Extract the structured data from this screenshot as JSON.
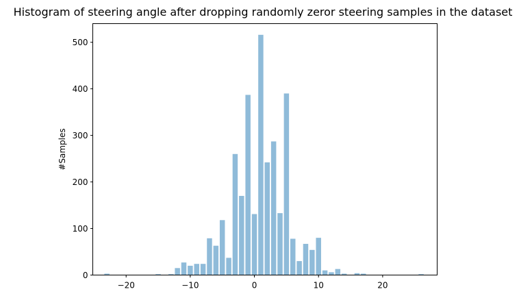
{
  "chart_data": {
    "type": "bar",
    "title": "Histogram of steering angle after dropping randomly zeror steering samples in the dataset",
    "xlabel": "",
    "ylabel": "#Samples",
    "xlim": [
      -25.2,
      28.5
    ],
    "ylim": [
      0,
      540
    ],
    "xticks": [
      -20,
      -10,
      0,
      10,
      20
    ],
    "yticks": [
      0,
      100,
      200,
      300,
      400,
      500
    ],
    "bar_width": 0.8,
    "color": "#1f77b4",
    "x": [
      -23,
      -15,
      -13,
      -12,
      -11,
      -10,
      -9,
      -8,
      -7,
      -6,
      -5,
      -4,
      -3,
      -2,
      -1,
      0,
      1,
      2,
      3,
      4,
      5,
      6,
      7,
      8,
      9,
      10,
      11,
      12,
      13,
      14,
      16,
      17,
      26
    ],
    "values": [
      3,
      2,
      2,
      15,
      27,
      20,
      24,
      24,
      79,
      63,
      118,
      37,
      260,
      170,
      387,
      131,
      516,
      242,
      287,
      133,
      390,
      78,
      30,
      67,
      54,
      80,
      10,
      6,
      13,
      3,
      4,
      3,
      2
    ]
  }
}
